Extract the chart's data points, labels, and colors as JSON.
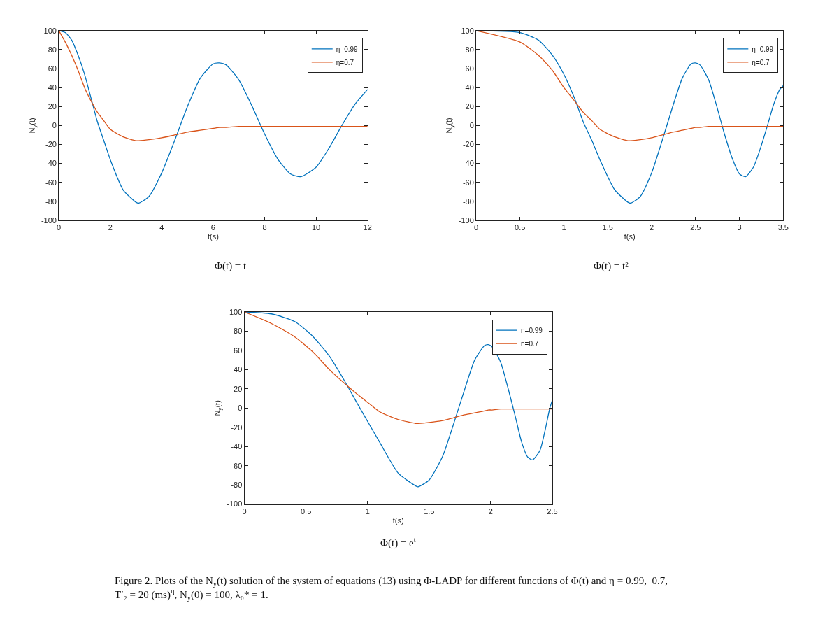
{
  "chart_data": [
    {
      "type": "line",
      "xlabel": "t(s)",
      "ylabel": "N$_{y}$(t)",
      "annotations": [
        "Φ(t) = t"
      ],
      "xlim": [
        0,
        12
      ],
      "xticks": [
        0,
        2,
        4,
        6,
        8,
        10,
        12
      ],
      "ylim": [
        -100,
        100
      ],
      "yticks": [
        -100,
        -80,
        -60,
        -40,
        -20,
        0,
        20,
        40,
        60,
        80,
        100
      ],
      "legend": "top right",
      "x": [
        0,
        0.25,
        0.5,
        0.75,
        1,
        1.25,
        1.5,
        1.75,
        2,
        2.5,
        3,
        3.1,
        3.5,
        4,
        4.5,
        5,
        5.5,
        6,
        6.25,
        6.5,
        7,
        7.5,
        8,
        8.5,
        9,
        9.4,
        10,
        10.5,
        11,
        11.5,
        12
      ],
      "series": [
        {
          "name": "η=0.99",
          "color": "#0072bd",
          "marker": "none",
          "values": [
            100,
            98,
            90,
            74,
            54,
            29,
            4,
            -16,
            -36,
            -68,
            -81,
            -82,
            -75,
            -50,
            -16,
            20,
            50,
            65,
            66,
            64,
            48,
            21,
            -9,
            -35,
            -51,
            -54,
            -44,
            -24,
            0,
            22,
            38
          ]
        },
        {
          "name": "η=0.7",
          "color": "#d95319",
          "marker": "none",
          "values": [
            100,
            88,
            74,
            58,
            40,
            26,
            14,
            5,
            -4,
            -12,
            -16,
            -16,
            -15,
            -13,
            -10,
            -7,
            -5,
            -3,
            -2,
            -2,
            -1,
            -1,
            -1,
            -1,
            -1,
            -1,
            -1,
            -1,
            -1,
            -1,
            -1
          ]
        }
      ]
    },
    {
      "type": "line",
      "xlabel": "t(s)",
      "ylabel": "N$_{y}$(t)",
      "annotations": [
        "Φ(t) = t²"
      ],
      "xlim": [
        0,
        3.5
      ],
      "xticks": [
        0,
        0.5,
        1,
        1.5,
        2,
        2.5,
        3,
        3.5
      ],
      "ylim": [
        -100,
        100
      ],
      "yticks": [
        -100,
        -80,
        -60,
        -40,
        -20,
        0,
        20,
        40,
        60,
        80,
        100
      ],
      "legend": "top right",
      "x": [
        0,
        0.5,
        0.71,
        0.87,
        1,
        1.12,
        1.22,
        1.32,
        1.41,
        1.58,
        1.73,
        1.76,
        1.87,
        2,
        2.12,
        2.24,
        2.35,
        2.45,
        2.5,
        2.55,
        2.65,
        2.74,
        2.83,
        2.92,
        3,
        3.07,
        3.16,
        3.24,
        3.32,
        3.39,
        3.46,
        3.5
      ],
      "series": [
        {
          "name": "η=0.99",
          "color": "#0072bd",
          "marker": "none",
          "values": [
            100,
            98,
            90,
            74,
            54,
            29,
            4,
            -16,
            -36,
            -68,
            -81,
            -82,
            -75,
            -50,
            -16,
            20,
            50,
            65,
            66,
            64,
            48,
            21,
            -9,
            -35,
            -51,
            -54,
            -44,
            -24,
            0,
            22,
            38,
            42
          ]
        },
        {
          "name": "η=0.7",
          "color": "#d95319",
          "marker": "none",
          "values": [
            100,
            88,
            74,
            58,
            40,
            26,
            14,
            5,
            -4,
            -12,
            -16,
            -16,
            -15,
            -13,
            -10,
            -7,
            -5,
            -3,
            -2,
            -2,
            -1,
            -1,
            -1,
            -1,
            -1,
            -1,
            -1,
            -1,
            -1,
            -1,
            -1,
            -1
          ]
        }
      ]
    },
    {
      "type": "line",
      "xlabel": "t(s)",
      "ylabel": "N$_{y}$(t)",
      "annotations": [
        "Φ(t) = e$^{t}$",
        "Figure 2. Plots of the N$_{y}$(t) solution of the system of equations (13) using Φ-LADP for different functions of Φ(t) and η = 0.99,  0.7,\nT′₂ = 20 (ms)$^{η}$, N$_{y}$(0) = 100, λ₀* = 1."
      ],
      "xlim": [
        0,
        2.5
      ],
      "xticks": [
        0,
        0.5,
        1,
        1.5,
        2,
        2.5
      ],
      "ylim": [
        -100,
        100
      ],
      "yticks": [
        -100,
        -80,
        -60,
        -40,
        -20,
        0,
        20,
        40,
        60,
        80,
        100
      ],
      "legend": "top right",
      "x": [
        0,
        0.22,
        0.41,
        0.56,
        0.69,
        0.81,
        0.92,
        1.01,
        1.1,
        1.25,
        1.39,
        1.41,
        1.5,
        1.61,
        1.7,
        1.79,
        1.87,
        1.95,
        1.98,
        2.01,
        2.08,
        2.14,
        2.2,
        2.25,
        2.3,
        2.34,
        2.4,
        2.44,
        2.48,
        2.5
      ],
      "series": [
        {
          "name": "η=0.99",
          "color": "#0072bd",
          "marker": "none",
          "values": [
            100,
            98,
            90,
            74,
            54,
            29,
            4,
            -16,
            -36,
            -68,
            -81,
            -82,
            -75,
            -50,
            -16,
            20,
            50,
            65,
            66,
            64,
            48,
            21,
            -9,
            -35,
            -51,
            -54,
            -44,
            -24,
            0,
            8
          ]
        },
        {
          "name": "η=0.7",
          "color": "#d95319",
          "marker": "none",
          "values": [
            100,
            88,
            74,
            58,
            40,
            26,
            14,
            5,
            -4,
            -12,
            -16,
            -16,
            -15,
            -13,
            -10,
            -7,
            -5,
            -3,
            -2,
            -2,
            -1,
            -1,
            -1,
            -1,
            -1,
            -1,
            -1,
            -1,
            -1,
            -1
          ]
        }
      ]
    }
  ]
}
